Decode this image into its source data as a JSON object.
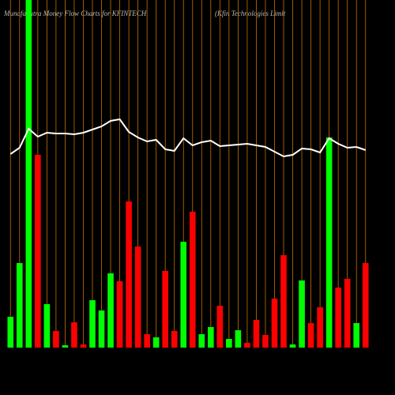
{
  "chart_data": {
    "type": "bar",
    "title": "MunafaSutra  Money Flow  Charts for KFINTECH",
    "subtitle": "(Kfin  Technologies Limit",
    "ylim": [
      0,
      440
    ],
    "grid_color": "#c87000",
    "series": [
      {
        "type": "bar",
        "values": [
          39,
          107,
          440,
          244,
          55,
          21,
          3,
          32,
          4,
          60,
          47,
          94,
          84,
          185,
          128,
          17,
          13,
          97,
          21,
          134,
          172,
          17,
          26,
          53,
          11,
          22,
          6,
          35,
          16,
          62,
          117,
          4,
          85,
          31,
          51,
          266,
          76,
          87,
          31,
          107
        ],
        "colors": [
          "#00ff00",
          "#00ff00",
          "#00ff00",
          "#ff0000",
          "#00ff00",
          "#ff0000",
          "#00ff00",
          "#ff0000",
          "#ff0000",
          "#00ff00",
          "#00ff00",
          "#00ff00",
          "#ff0000",
          "#ff0000",
          "#ff0000",
          "#ff0000",
          "#00ff00",
          "#ff0000",
          "#ff0000",
          "#00ff00",
          "#ff0000",
          "#00ff00",
          "#00ff00",
          "#ff0000",
          "#00ff00",
          "#00ff00",
          "#ff0000",
          "#ff0000",
          "#ff0000",
          "#ff0000",
          "#ff0000",
          "#00ff00",
          "#00ff00",
          "#ff0000",
          "#ff0000",
          "#00ff00",
          "#ff0000",
          "#ff0000",
          "#00ff00",
          "#ff0000"
        ]
      },
      {
        "type": "line",
        "color": "#ffffff",
        "values": [
          245,
          253,
          277,
          267,
          272,
          271,
          271,
          270,
          272,
          276,
          280,
          287,
          289,
          273,
          266,
          261,
          263,
          251,
          249,
          265,
          256,
          260,
          262,
          255,
          256,
          257,
          258,
          256,
          254,
          248,
          242,
          244,
          252,
          251,
          247,
          265,
          258,
          253,
          254,
          250
        ]
      }
    ]
  }
}
